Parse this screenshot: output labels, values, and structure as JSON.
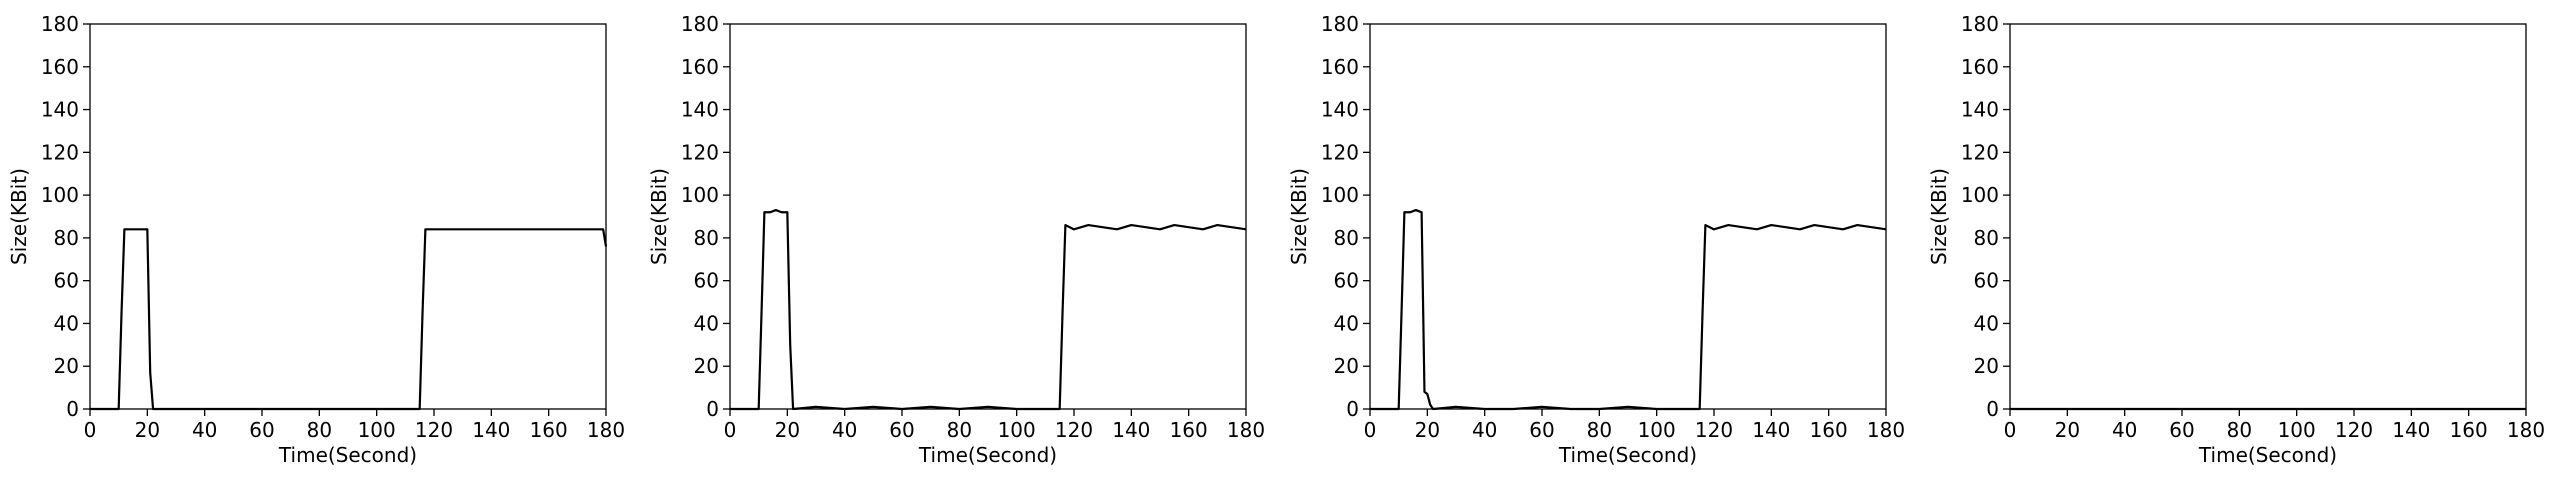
{
  "chart_data": [
    {
      "type": "line",
      "xlabel": "Time(Second)",
      "ylabel": "Size(KBit)",
      "xlim": [
        0,
        180
      ],
      "ylim": [
        0,
        180
      ],
      "xticks": [
        0,
        20,
        40,
        60,
        80,
        100,
        120,
        140,
        160,
        180
      ],
      "yticks": [
        0,
        20,
        40,
        60,
        80,
        100,
        120,
        140,
        160,
        180
      ],
      "grid": false,
      "line_color": "#000000",
      "series": [
        {
          "x": [
            0,
            10,
            11,
            12,
            20,
            21,
            22,
            115,
            116,
            117,
            179,
            180
          ],
          "y": [
            0,
            0,
            45,
            84,
            84,
            17,
            0,
            0,
            45,
            84,
            84,
            76
          ]
        }
      ]
    },
    {
      "type": "line",
      "xlabel": "Time(Second)",
      "ylabel": "Size(KBit)",
      "xlim": [
        0,
        180
      ],
      "ylim": [
        0,
        180
      ],
      "xticks": [
        0,
        20,
        40,
        60,
        80,
        100,
        120,
        140,
        160,
        180
      ],
      "yticks": [
        0,
        20,
        40,
        60,
        80,
        100,
        120,
        140,
        160,
        180
      ],
      "grid": false,
      "line_color": "#000000",
      "series": [
        {
          "x": [
            0,
            10,
            11,
            12,
            14,
            16,
            18,
            20,
            21,
            22,
            30,
            40,
            50,
            60,
            70,
            80,
            90,
            100,
            110,
            115,
            116,
            117,
            120,
            125,
            130,
            135,
            140,
            145,
            150,
            155,
            160,
            165,
            170,
            175,
            180
          ],
          "y": [
            0,
            0,
            45,
            92,
            92,
            93,
            92,
            92,
            30,
            0,
            1,
            0,
            1,
            0,
            1,
            0,
            1,
            0,
            0,
            0,
            45,
            86,
            84,
            86,
            85,
            84,
            86,
            85,
            84,
            86,
            85,
            84,
            86,
            85,
            84
          ]
        }
      ]
    },
    {
      "type": "line",
      "xlabel": "Time(Second)",
      "ylabel": "Size(KBit)",
      "xlim": [
        0,
        180
      ],
      "ylim": [
        0,
        180
      ],
      "xticks": [
        0,
        20,
        40,
        60,
        80,
        100,
        120,
        140,
        160,
        180
      ],
      "yticks": [
        0,
        20,
        40,
        60,
        80,
        100,
        120,
        140,
        160,
        180
      ],
      "grid": false,
      "line_color": "#000000",
      "series": [
        {
          "x": [
            0,
            10,
            11,
            12,
            14,
            16,
            18,
            19,
            20,
            21,
            22,
            30,
            40,
            50,
            60,
            70,
            80,
            90,
            100,
            110,
            115,
            116,
            117,
            120,
            125,
            130,
            135,
            140,
            145,
            150,
            155,
            160,
            165,
            170,
            175,
            180
          ],
          "y": [
            0,
            0,
            45,
            92,
            92,
            93,
            92,
            8,
            7,
            2,
            0,
            1,
            0,
            0,
            1,
            0,
            0,
            1,
            0,
            0,
            0,
            45,
            86,
            84,
            86,
            85,
            84,
            86,
            85,
            84,
            86,
            85,
            84,
            86,
            85,
            84
          ]
        }
      ]
    },
    {
      "type": "line",
      "xlabel": "Time(Second)",
      "ylabel": "Size(KBit)",
      "xlim": [
        0,
        180
      ],
      "ylim": [
        0,
        180
      ],
      "xticks": [
        0,
        20,
        40,
        60,
        80,
        100,
        120,
        140,
        160,
        180
      ],
      "yticks": [
        0,
        20,
        40,
        60,
        80,
        100,
        120,
        140,
        160,
        180
      ],
      "grid": false,
      "line_color": "#000000",
      "series": [
        {
          "x": [
            0,
            180
          ],
          "y": [
            0,
            0
          ]
        }
      ]
    }
  ]
}
